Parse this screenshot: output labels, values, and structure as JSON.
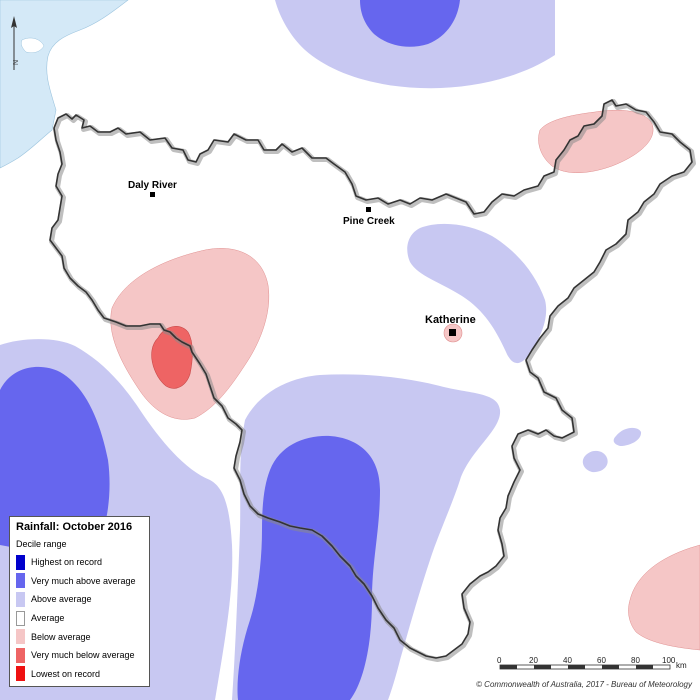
{
  "legend": {
    "title": "Rainfall: October 2016",
    "subtitle": "Decile range",
    "items": [
      {
        "label": "Highest on record",
        "color": "#0000cc"
      },
      {
        "label": "Very much above average",
        "color": "#6666ee"
      },
      {
        "label": "Above average",
        "color": "#c8c8f2"
      },
      {
        "label": "Average",
        "color": "#ffffff"
      },
      {
        "label": "Below average",
        "color": "#f5c6c6"
      },
      {
        "label": "Very much below average",
        "color": "#ee6464"
      },
      {
        "label": "Lowest on record",
        "color": "#ee1111"
      }
    ]
  },
  "towns": {
    "daly_river": "Daly River",
    "pine_creek": "Pine Creek",
    "katherine": "Katherine"
  },
  "scale_bar": {
    "ticks": [
      "0",
      "20",
      "40",
      "60",
      "80",
      "100"
    ],
    "unit": "km"
  },
  "north_arrow": {
    "letter": "N"
  },
  "credit": "© Commonwealth of Australia, 2017 - Bureau of Meteorology",
  "colors": {
    "sea": "#d4e9f7",
    "boundary_shadow": "#8a8a8a"
  }
}
